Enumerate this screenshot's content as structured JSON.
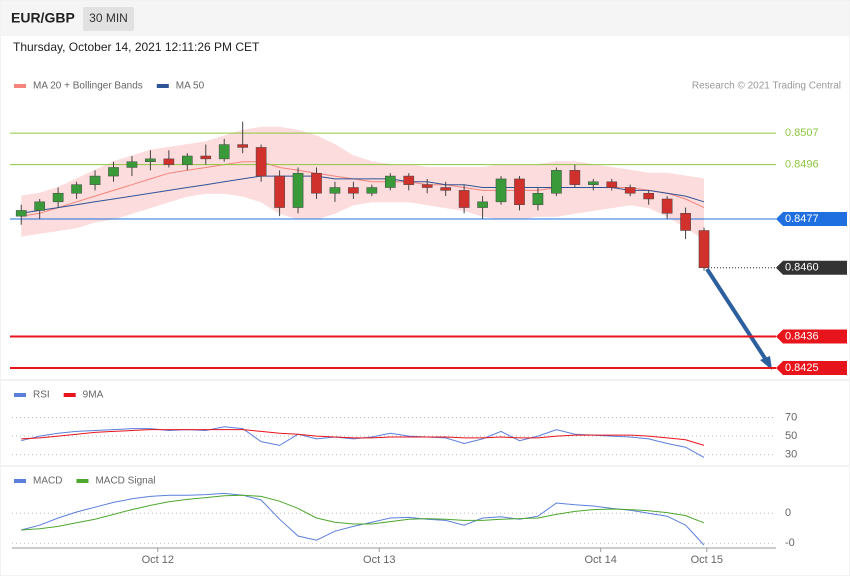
{
  "header": {
    "symbol": "EUR/GBP",
    "interval": "30 MIN",
    "date": "Thursday, October 14, 2021 12:11:26 PM CET",
    "credit": "Research © 2021 Trading Central"
  },
  "chart_data": [
    {
      "type": "candlestick",
      "xlim": [
        0,
        41.4
      ],
      "ylim": [
        0.84215,
        0.85203
      ],
      "up_color": "#3a9a3a",
      "down_color": "#d0312d",
      "ohlc": [
        [
          0.8478,
          0.8482,
          0.8475,
          0.848
        ],
        [
          0.848,
          0.8484,
          0.8477,
          0.8483
        ],
        [
          0.8483,
          0.8488,
          0.8481,
          0.8486
        ],
        [
          0.8486,
          0.849,
          0.8484,
          0.8489
        ],
        [
          0.8489,
          0.8494,
          0.8487,
          0.8492
        ],
        [
          0.8492,
          0.8497,
          0.849,
          0.8495
        ],
        [
          0.8495,
          0.8499,
          0.8492,
          0.8497
        ],
        [
          0.8497,
          0.8501,
          0.8494,
          0.8498
        ],
        [
          0.8498,
          0.8501,
          0.8495,
          0.8496
        ],
        [
          0.8496,
          0.85,
          0.8494,
          0.8499
        ],
        [
          0.8499,
          0.8503,
          0.8496,
          0.8498
        ],
        [
          0.8498,
          0.8505,
          0.8497,
          0.8503
        ],
        [
          0.8503,
          0.8511,
          0.85,
          0.8502
        ],
        [
          0.8502,
          0.8503,
          0.849,
          0.8492
        ],
        [
          0.8492,
          0.8494,
          0.8478,
          0.8481
        ],
        [
          0.8481,
          0.8495,
          0.8479,
          0.8493
        ],
        [
          0.8493,
          0.8495,
          0.8484,
          0.8486
        ],
        [
          0.8486,
          0.849,
          0.8483,
          0.8488
        ],
        [
          0.8488,
          0.849,
          0.8484,
          0.8486
        ],
        [
          0.8486,
          0.8489,
          0.8485,
          0.8488
        ],
        [
          0.8488,
          0.8493,
          0.8487,
          0.8492
        ],
        [
          0.8492,
          0.8493,
          0.8487,
          0.8489
        ],
        [
          0.8489,
          0.8491,
          0.8486,
          0.8488
        ],
        [
          0.8488,
          0.849,
          0.8485,
          0.8487
        ],
        [
          0.8487,
          0.8489,
          0.8479,
          0.8481
        ],
        [
          0.8481,
          0.8485,
          0.8477,
          0.8483
        ],
        [
          0.8483,
          0.8492,
          0.8482,
          0.8491
        ],
        [
          0.8491,
          0.8492,
          0.848,
          0.8482
        ],
        [
          0.8482,
          0.8488,
          0.848,
          0.8486
        ],
        [
          0.8486,
          0.8495,
          0.8485,
          0.8494
        ],
        [
          0.8494,
          0.8496,
          0.8488,
          0.8489
        ],
        [
          0.8489,
          0.8491,
          0.8487,
          0.849
        ],
        [
          0.849,
          0.8491,
          0.8487,
          0.8488
        ],
        [
          0.8488,
          0.8489,
          0.8485,
          0.8486
        ],
        [
          0.8486,
          0.8487,
          0.8482,
          0.8484
        ],
        [
          0.8484,
          0.8485,
          0.8477,
          0.8479
        ],
        [
          0.8479,
          0.8481,
          0.847,
          0.8473
        ],
        [
          0.8473,
          0.8474,
          0.8459,
          0.846
        ]
      ],
      "series": [
        {
          "name": "MA 20 + Bollinger Bands",
          "color": "#f4847c",
          "band_color": "#fcdcdc",
          "values": [
            0.8478,
            0.8479,
            0.8481,
            0.8483,
            0.8485,
            0.8487,
            0.8489,
            0.8491,
            0.8493,
            0.8494,
            0.8495,
            0.8496,
            0.8497,
            0.8497,
            0.8495,
            0.8494,
            0.8493,
            0.8492,
            0.8491,
            0.849,
            0.849,
            0.849,
            0.8489,
            0.8489,
            0.8488,
            0.8487,
            0.8487,
            0.8487,
            0.8487,
            0.8488,
            0.8488,
            0.8488,
            0.8488,
            0.8488,
            0.8487,
            0.8486,
            0.8484,
            0.8481
          ],
          "upper": [
            0.8485,
            0.8486,
            0.8488,
            0.8491,
            0.8494,
            0.8497,
            0.8499,
            0.8501,
            0.8502,
            0.8503,
            0.8504,
            0.8506,
            0.8508,
            0.8509,
            0.8509,
            0.8508,
            0.8506,
            0.8503,
            0.8499,
            0.8497,
            0.8496,
            0.8496,
            0.8495,
            0.8495,
            0.8495,
            0.8495,
            0.8496,
            0.8496,
            0.8496,
            0.8497,
            0.8497,
            0.8496,
            0.8495,
            0.8494,
            0.8493,
            0.8493,
            0.8492,
            0.8491
          ],
          "lower": [
            0.8471,
            0.8472,
            0.8473,
            0.8474,
            0.8476,
            0.8477,
            0.8479,
            0.8481,
            0.8483,
            0.8485,
            0.8486,
            0.8486,
            0.8485,
            0.8483,
            0.8479,
            0.8477,
            0.8477,
            0.8479,
            0.8482,
            0.8483,
            0.8483,
            0.8483,
            0.8482,
            0.8481,
            0.848,
            0.8478,
            0.8477,
            0.8477,
            0.8478,
            0.8478,
            0.8479,
            0.848,
            0.8481,
            0.8482,
            0.8481,
            0.8478,
            0.8474,
            0.847
          ]
        },
        {
          "name": "MA 50",
          "color": "#2f5597",
          "values": [
            0.8479,
            0.848,
            0.8481,
            0.8482,
            0.8483,
            0.8484,
            0.8485,
            0.8486,
            0.8487,
            0.8488,
            0.8489,
            0.849,
            0.8491,
            0.8492,
            0.8492,
            0.8492,
            0.8492,
            0.8491,
            0.8491,
            0.8491,
            0.8491,
            0.849,
            0.849,
            0.8489,
            0.8489,
            0.8488,
            0.8488,
            0.8488,
            0.8488,
            0.8488,
            0.8488,
            0.8488,
            0.8488,
            0.8487,
            0.8487,
            0.8486,
            0.8485,
            0.8483
          ]
        }
      ],
      "levels": [
        {
          "value": 0.8507,
          "label": "0.8507",
          "color": "#8dc63f",
          "style": "text",
          "line": "thin"
        },
        {
          "value": 0.8496,
          "label": "0.8496",
          "color": "#8dc63f",
          "style": "text",
          "line": "thin"
        },
        {
          "value": 0.8477,
          "label": "0.8477",
          "color": "#1f6fe0",
          "style": "box",
          "line": "thin"
        },
        {
          "value": 0.846,
          "label": "0.8460",
          "color": "#333333",
          "style": "box",
          "line": "dotted"
        },
        {
          "value": 0.8436,
          "label": "0.8436",
          "color": "#e8141b",
          "style": "box",
          "line": "thick"
        },
        {
          "value": 0.8425,
          "label": "0.8425",
          "color": "#e8141b",
          "style": "box",
          "line": "thick"
        }
      ]
    },
    {
      "type": "line",
      "xlim": [
        0,
        41.4
      ],
      "ylim": [
        21,
        105
      ],
      "yticks": [
        70,
        50,
        30
      ],
      "series": [
        {
          "name": "RSI",
          "color": "#5b7fdb",
          "values": [
            45,
            50,
            53,
            55,
            56,
            57,
            58,
            58,
            56,
            57,
            56,
            60,
            58,
            44,
            40,
            52,
            47,
            49,
            47,
            49,
            53,
            50,
            49,
            48,
            42,
            47,
            55,
            45,
            50,
            57,
            52,
            51,
            50,
            49,
            47,
            42,
            38,
            27
          ]
        },
        {
          "name": "9MA",
          "color": "#e8141b",
          "values": [
            47,
            48,
            50,
            52,
            54,
            55,
            56,
            57,
            57,
            57,
            57,
            57,
            57,
            55,
            53,
            52,
            50,
            49,
            48,
            48,
            49,
            49,
            49,
            49,
            48,
            48,
            49,
            48,
            48,
            50,
            51,
            51,
            51,
            51,
            50,
            48,
            46,
            40
          ]
        }
      ]
    },
    {
      "type": "line",
      "xlim": [
        0,
        41.4
      ],
      "ylim": [
        -0.00058,
        0.00072
      ],
      "yticks": [
        0,
        {
          "value": -0.0005,
          "label": "-0"
        }
      ],
      "xticks": [
        {
          "value": 7.9,
          "label": "Oct 12"
        },
        {
          "value": 19.9,
          "label": "Oct 13"
        },
        {
          "value": 31.9,
          "label": "Oct 14"
        },
        {
          "value": 37.65,
          "label": "Oct 15"
        }
      ],
      "series": [
        {
          "name": "MACD",
          "color": "#5b7fdb",
          "values": [
            -0.00028,
            -0.0002,
            -8e-05,
            2e-05,
            0.0001,
            0.00018,
            0.00024,
            0.00028,
            0.0003,
            0.0003,
            0.00031,
            0.00033,
            0.0003,
            0.00022,
            -0.0001,
            -0.00038,
            -0.00045,
            -0.0003,
            -0.00022,
            -0.00015,
            -8e-05,
            -7e-05,
            -0.0001,
            -0.00012,
            -0.0002,
            -8e-05,
            -6e-05,
            -0.0001,
            -5e-05,
            0.00017,
            0.00014,
            0.00012,
            8e-05,
            5e-05,
            0,
            -5e-05,
            -0.0002,
            -0.00053
          ]
        },
        {
          "name": "MACD Signal",
          "color": "#4ea72e",
          "values": [
            -0.00028,
            -0.00026,
            -0.00022,
            -0.00016,
            -0.0001,
            -2e-05,
            6e-05,
            0.00013,
            0.00019,
            0.00023,
            0.00026,
            0.00029,
            0.0003,
            0.00028,
            0.0002,
            8e-05,
            -8e-05,
            -0.00015,
            -0.00018,
            -0.00018,
            -0.00014,
            -0.0001,
            -9e-05,
            -0.0001,
            -0.00012,
            -0.00012,
            -0.0001,
            -9e-05,
            -8e-05,
            -2e-05,
            3e-05,
            6e-05,
            7e-05,
            6e-05,
            4e-05,
            1e-05,
            -4e-05,
            -0.00016
          ]
        }
      ]
    }
  ]
}
